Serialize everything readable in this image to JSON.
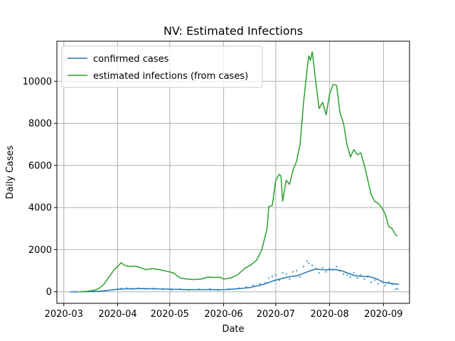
{
  "chart_data": {
    "type": "line",
    "title": "NV: Estimated Infections",
    "xlabel": "Date",
    "ylabel": "Daily Cases",
    "x_range": [
      "2020-02-26",
      "2020-09-16"
    ],
    "ylim": [
      -550,
      11900
    ],
    "x_ticks": [
      "2020-03-01",
      "2020-04-01",
      "2020-05-01",
      "2020-06-01",
      "2020-07-01",
      "2020-08-01",
      "2020-09-01"
    ],
    "x_tick_labels": [
      "2020-03",
      "2020-04",
      "2020-05",
      "2020-06",
      "2020-07",
      "2020-08",
      "2020-09"
    ],
    "y_ticks": [
      0,
      2000,
      4000,
      6000,
      8000,
      10000
    ],
    "y_tick_labels": [
      "0",
      "2000",
      "4000",
      "6000",
      "8000",
      "10000"
    ],
    "grid": true,
    "legend": "upper-left",
    "series": [
      {
        "name": "confirmed cases",
        "color": "#1f77b4",
        "style": "line",
        "points": [
          [
            "2020-03-10",
            0
          ],
          [
            "2020-03-17",
            10
          ],
          [
            "2020-03-24",
            40
          ],
          [
            "2020-03-31",
            110
          ],
          [
            "2020-04-07",
            140
          ],
          [
            "2020-04-14",
            150
          ],
          [
            "2020-04-21",
            140
          ],
          [
            "2020-04-28",
            130
          ],
          [
            "2020-05-05",
            110
          ],
          [
            "2020-05-12",
            100
          ],
          [
            "2020-05-19",
            105
          ],
          [
            "2020-05-26",
            100
          ],
          [
            "2020-06-02",
            105
          ],
          [
            "2020-06-09",
            140
          ],
          [
            "2020-06-16",
            200
          ],
          [
            "2020-06-23",
            330
          ],
          [
            "2020-06-30",
            530
          ],
          [
            "2020-07-07",
            680
          ],
          [
            "2020-07-14",
            780
          ],
          [
            "2020-07-21",
            1000
          ],
          [
            "2020-07-24",
            1080
          ],
          [
            "2020-07-28",
            1050
          ],
          [
            "2020-08-01",
            1040
          ],
          [
            "2020-08-04",
            1060
          ],
          [
            "2020-08-08",
            1000
          ],
          [
            "2020-08-11",
            900
          ],
          [
            "2020-08-15",
            780
          ],
          [
            "2020-08-18",
            740
          ],
          [
            "2020-08-22",
            720
          ],
          [
            "2020-08-25",
            700
          ],
          [
            "2020-08-29",
            580
          ],
          [
            "2020-09-01",
            450
          ],
          [
            "2020-09-05",
            400
          ],
          [
            "2020-09-08",
            370
          ],
          [
            "2020-09-10",
            350
          ]
        ]
      },
      {
        "name": "estimated infections (from cases)",
        "color": "#2ca02c",
        "style": "line",
        "points": [
          [
            "2020-03-10",
            0
          ],
          [
            "2020-03-14",
            20
          ],
          [
            "2020-03-18",
            60
          ],
          [
            "2020-03-21",
            150
          ],
          [
            "2020-03-24",
            350
          ],
          [
            "2020-03-27",
            700
          ],
          [
            "2020-03-30",
            1050
          ],
          [
            "2020-04-01",
            1200
          ],
          [
            "2020-04-03",
            1380
          ],
          [
            "2020-04-05",
            1250
          ],
          [
            "2020-04-08",
            1200
          ],
          [
            "2020-04-11",
            1220
          ],
          [
            "2020-04-14",
            1150
          ],
          [
            "2020-04-17",
            1050
          ],
          [
            "2020-04-21",
            1100
          ],
          [
            "2020-04-25",
            1050
          ],
          [
            "2020-04-29",
            980
          ],
          [
            "2020-05-03",
            900
          ],
          [
            "2020-05-07",
            650
          ],
          [
            "2020-05-11",
            600
          ],
          [
            "2020-05-15",
            580
          ],
          [
            "2020-05-19",
            600
          ],
          [
            "2020-05-23",
            700
          ],
          [
            "2020-05-27",
            680
          ],
          [
            "2020-05-30",
            690
          ],
          [
            "2020-06-01",
            600
          ],
          [
            "2020-06-05",
            650
          ],
          [
            "2020-06-09",
            800
          ],
          [
            "2020-06-13",
            1100
          ],
          [
            "2020-06-17",
            1300
          ],
          [
            "2020-06-20",
            1500
          ],
          [
            "2020-06-23",
            2000
          ],
          [
            "2020-06-26",
            3000
          ],
          [
            "2020-06-27",
            4050
          ],
          [
            "2020-06-29",
            4100
          ],
          [
            "2020-07-01",
            5300
          ],
          [
            "2020-07-03",
            5580
          ],
          [
            "2020-07-04",
            5500
          ],
          [
            "2020-07-05",
            4300
          ],
          [
            "2020-07-07",
            5300
          ],
          [
            "2020-07-09",
            5100
          ],
          [
            "2020-07-11",
            5800
          ],
          [
            "2020-07-13",
            6200
          ],
          [
            "2020-07-15",
            7000
          ],
          [
            "2020-07-17",
            9000
          ],
          [
            "2020-07-19",
            10500
          ],
          [
            "2020-07-20",
            11200
          ],
          [
            "2020-07-21",
            11000
          ],
          [
            "2020-07-22",
            11400
          ],
          [
            "2020-07-24",
            10000
          ],
          [
            "2020-07-26",
            8700
          ],
          [
            "2020-07-28",
            9000
          ],
          [
            "2020-07-30",
            8400
          ],
          [
            "2020-08-01",
            9400
          ],
          [
            "2020-08-03",
            9850
          ],
          [
            "2020-08-05",
            9800
          ],
          [
            "2020-08-07",
            8500
          ],
          [
            "2020-08-09",
            8000
          ],
          [
            "2020-08-11",
            7000
          ],
          [
            "2020-08-13",
            6400
          ],
          [
            "2020-08-15",
            6750
          ],
          [
            "2020-08-17",
            6500
          ],
          [
            "2020-08-19",
            6600
          ],
          [
            "2020-08-21",
            6000
          ],
          [
            "2020-08-23",
            5300
          ],
          [
            "2020-08-25",
            4600
          ],
          [
            "2020-08-27",
            4300
          ],
          [
            "2020-08-29",
            4200
          ],
          [
            "2020-08-31",
            4000
          ],
          [
            "2020-09-02",
            3700
          ],
          [
            "2020-09-04",
            3100
          ],
          [
            "2020-09-06",
            3000
          ],
          [
            "2020-09-08",
            2700
          ],
          [
            "2020-09-09",
            2650
          ]
        ]
      },
      {
        "name": "",
        "color": "#1f77b4",
        "style": "scatter",
        "points": [
          [
            "2020-03-05",
            0
          ],
          [
            "2020-03-06",
            0
          ],
          [
            "2020-03-07",
            0
          ],
          [
            "2020-03-08",
            0
          ],
          [
            "2020-03-09",
            0
          ],
          [
            "2020-03-18",
            20
          ],
          [
            "2020-03-25",
            50
          ],
          [
            "2020-04-01",
            120
          ],
          [
            "2020-04-03",
            160
          ],
          [
            "2020-04-06",
            180
          ],
          [
            "2020-04-09",
            130
          ],
          [
            "2020-04-13",
            170
          ],
          [
            "2020-04-17",
            140
          ],
          [
            "2020-04-22",
            160
          ],
          [
            "2020-04-27",
            120
          ],
          [
            "2020-05-02",
            100
          ],
          [
            "2020-05-07",
            130
          ],
          [
            "2020-05-12",
            90
          ],
          [
            "2020-05-18",
            120
          ],
          [
            "2020-05-24",
            150
          ],
          [
            "2020-05-29",
            80
          ],
          [
            "2020-06-04",
            130
          ],
          [
            "2020-06-10",
            170
          ],
          [
            "2020-06-14",
            220
          ],
          [
            "2020-06-18",
            300
          ],
          [
            "2020-06-22",
            380
          ],
          [
            "2020-06-25",
            420
          ],
          [
            "2020-06-27",
            650
          ],
          [
            "2020-06-29",
            720
          ],
          [
            "2020-07-01",
            800
          ],
          [
            "2020-07-03",
            550
          ],
          [
            "2020-07-05",
            900
          ],
          [
            "2020-07-07",
            850
          ],
          [
            "2020-07-09",
            600
          ],
          [
            "2020-07-11",
            950
          ],
          [
            "2020-07-13",
            1000
          ],
          [
            "2020-07-15",
            700
          ],
          [
            "2020-07-17",
            1200
          ],
          [
            "2020-07-19",
            1450
          ],
          [
            "2020-07-20",
            1350
          ],
          [
            "2020-07-22",
            1250
          ],
          [
            "2020-07-24",
            1100
          ],
          [
            "2020-07-26",
            900
          ],
          [
            "2020-07-28",
            1150
          ],
          [
            "2020-07-30",
            950
          ],
          [
            "2020-08-01",
            1100
          ],
          [
            "2020-08-03",
            1050
          ],
          [
            "2020-08-05",
            1200
          ],
          [
            "2020-08-07",
            1000
          ],
          [
            "2020-08-09",
            850
          ],
          [
            "2020-08-11",
            800
          ],
          [
            "2020-08-13",
            700
          ],
          [
            "2020-08-15",
            900
          ],
          [
            "2020-08-17",
            650
          ],
          [
            "2020-08-19",
            800
          ],
          [
            "2020-08-21",
            600
          ],
          [
            "2020-08-23",
            750
          ],
          [
            "2020-08-25",
            450
          ],
          [
            "2020-08-27",
            550
          ],
          [
            "2020-08-29",
            380
          ],
          [
            "2020-08-31",
            500
          ],
          [
            "2020-09-02",
            300
          ],
          [
            "2020-09-04",
            450
          ],
          [
            "2020-09-06",
            350
          ],
          [
            "2020-09-08",
            120
          ],
          [
            "2020-09-09",
            150
          ]
        ]
      }
    ]
  }
}
